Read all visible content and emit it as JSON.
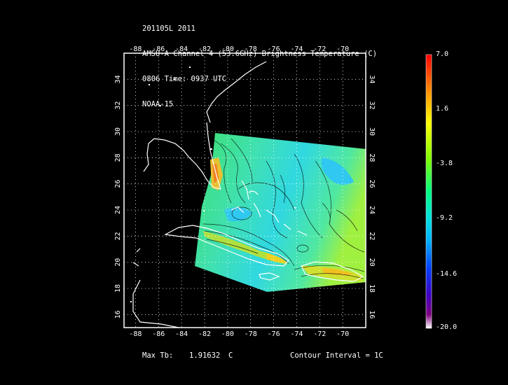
{
  "header": {
    "line1": "201105L 2011",
    "line2": "AMSU-A Channel 4 (53.6GHz) Brightness Temperature (C)",
    "line3": "0806 Time: 0937 UTC",
    "line4": "NOAA-15"
  },
  "map": {
    "lon_ticks": [
      "-88",
      "-86",
      "-84",
      "-82",
      "-80",
      "-78",
      "-76",
      "-74",
      "-72",
      "-70"
    ],
    "lat_ticks": [
      "16",
      "18",
      "20",
      "22",
      "24",
      "26",
      "28",
      "30",
      "32",
      "34"
    ],
    "lon_range": [
      -89,
      -68
    ],
    "lat_range": [
      15,
      36
    ]
  },
  "colorbar": {
    "labels": [
      "7.0",
      "1.6",
      "-3.8",
      "-9.2",
      "-14.6",
      "-20.0"
    ],
    "colors": [
      "#ff0000",
      "#ff8000",
      "#ffff00",
      "#80ff00",
      "#00ff80",
      "#00e0e0",
      "#00b0ff",
      "#0040ff",
      "#4000c0",
      "#800080",
      "#ffffff"
    ]
  },
  "footer": {
    "max_label": "Max Tb:",
    "max_value": "1.91632",
    "max_unit": "C",
    "contour": "Contour Interval = 1C"
  }
}
